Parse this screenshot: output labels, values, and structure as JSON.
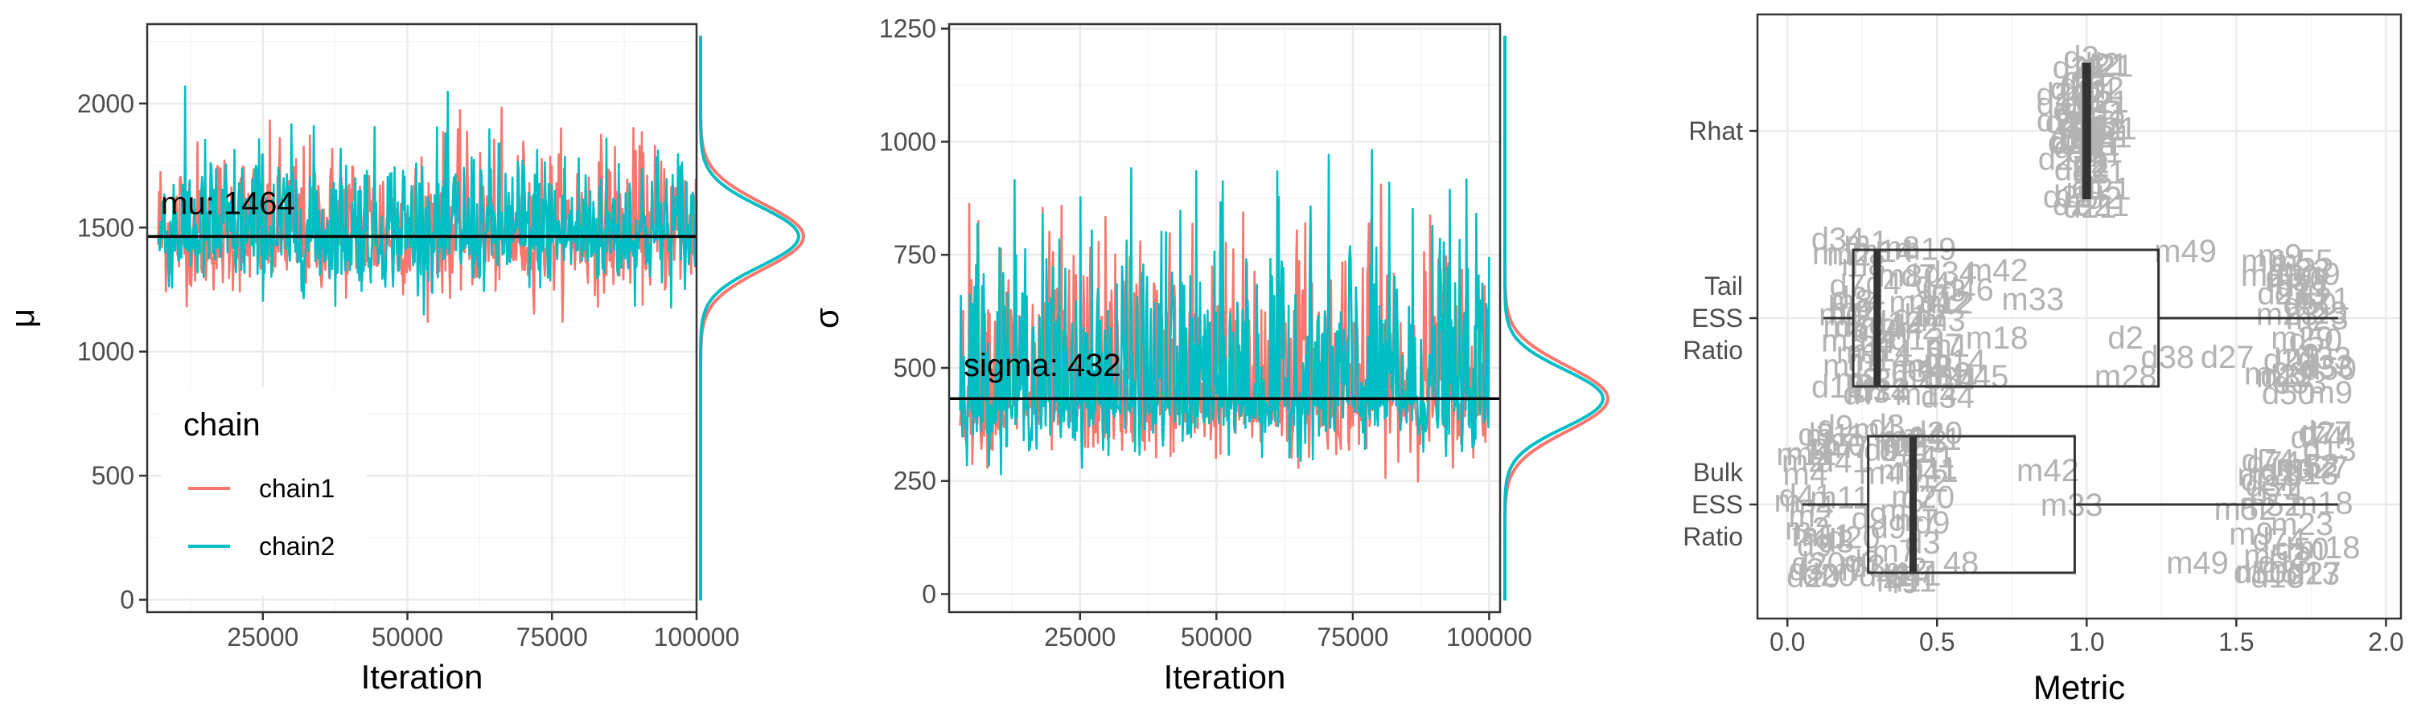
{
  "colors": {
    "chain1": "#F8766D",
    "chain2": "#00BFC4",
    "grid": "#EBEBEB",
    "point_label": "#B3B3B3"
  },
  "chart_data": [
    {
      "type": "line",
      "panel": "mu-trace",
      "xlabel": "Iteration",
      "ylabel": "μ",
      "xlim": [
        5000,
        100000
      ],
      "ylim": [
        -50,
        2320
      ],
      "x_ticks": [
        25000,
        50000,
        75000,
        100000
      ],
      "x_tick_labels": [
        "25000",
        "50000",
        "75000",
        "100000"
      ],
      "y_ticks": [
        0,
        500,
        1000,
        1500,
        2000
      ],
      "y_tick_labels": [
        "0",
        "500",
        "1000",
        "1500",
        "2000"
      ],
      "hline": 1464,
      "annotation": "mu: 1464",
      "legend": {
        "title": "chain",
        "position": "bottom-left",
        "entries": [
          "chain1",
          "chain2"
        ]
      },
      "series": [
        {
          "name": "chain1",
          "color": "#F8766D",
          "center": 1464,
          "low": 1120,
          "high": 2250
        },
        {
          "name": "chain2",
          "color": "#00BFC4",
          "center": 1464,
          "low": 1150,
          "high": 2240
        }
      ],
      "density_peak": 1464
    },
    {
      "type": "line",
      "panel": "sigma-trace",
      "xlabel": "Iteration",
      "ylabel": "σ",
      "xlim": [
        1000,
        102000
      ],
      "ylim": [
        -40,
        1260
      ],
      "x_ticks": [
        25000,
        50000,
        75000,
        100000
      ],
      "x_tick_labels": [
        "25000",
        "50000",
        "75000",
        "100000"
      ],
      "y_ticks": [
        0,
        250,
        500,
        750,
        1000,
        1250
      ],
      "y_tick_labels": [
        "0",
        "250",
        "500",
        "750",
        "1000",
        "1250"
      ],
      "hline": 432,
      "annotation": "sigma: 432",
      "series": [
        {
          "name": "chain1",
          "color": "#F8766D",
          "center": 432,
          "low": 245,
          "high": 1190
        },
        {
          "name": "chain2",
          "color": "#00BFC4",
          "center": 432,
          "low": 265,
          "high": 1210
        }
      ],
      "density_peak": 432
    },
    {
      "type": "boxplot",
      "panel": "diagnostics",
      "xlabel": "Metric",
      "xlim": [
        -0.1,
        2.05
      ],
      "x_ticks": [
        0.0,
        0.5,
        1.0,
        1.5,
        2.0
      ],
      "x_tick_labels": [
        "0.0",
        "0.5",
        "1.0",
        "1.5",
        "2.0"
      ],
      "categories": [
        "Rhat",
        "Tail ESS Ratio",
        "Bulk ESS Ratio"
      ],
      "category_labels": [
        [
          "Rhat"
        ],
        [
          "Tail",
          "ESS",
          "Ratio"
        ],
        [
          "Bulk",
          "ESS",
          "Ratio"
        ]
      ],
      "boxes": [
        {
          "category": "Rhat",
          "whisker_low": 1.0,
          "q1": 1.0,
          "median": 1.0,
          "q3": 1.0,
          "whisker_high": 1.0
        },
        {
          "category": "Tail ESS Ratio",
          "whisker_low": 0.12,
          "q1": 0.22,
          "median": 0.3,
          "q3": 1.24,
          "whisker_high": 1.84
        },
        {
          "category": "Bulk ESS Ratio",
          "whisker_low": 0.05,
          "q1": 0.27,
          "median": 0.42,
          "q3": 0.96,
          "whisker_high": 1.84
        }
      ],
      "point_labels": [
        {
          "category": "Tail ESS Ratio",
          "x": 1.33,
          "dy": -0.35,
          "text": "m49"
        },
        {
          "category": "Tail ESS Ratio",
          "x": 0.82,
          "dy": -0.1,
          "text": "m33"
        },
        {
          "category": "Tail ESS Ratio",
          "x": 0.45,
          "dy": 0.3,
          "text": "m25"
        },
        {
          "category": "Tail ESS Ratio",
          "x": 0.7,
          "dy": 0.1,
          "text": "m18"
        },
        {
          "category": "Tail ESS Ratio",
          "x": 1.13,
          "dy": 0.1,
          "text": "d2"
        },
        {
          "category": "Tail ESS Ratio",
          "x": 1.27,
          "dy": 0.2,
          "text": "d38"
        },
        {
          "category": "Tail ESS Ratio",
          "x": 1.47,
          "dy": 0.2,
          "text": "d27"
        },
        {
          "category": "Tail ESS Ratio",
          "x": 0.65,
          "dy": 0.3,
          "text": "d45"
        },
        {
          "category": "Tail ESS Ratio",
          "x": 1.13,
          "dy": 0.3,
          "text": "m28"
        },
        {
          "category": "Tail ESS Ratio",
          "x": 0.6,
          "dy": -0.15,
          "text": "d46"
        },
        {
          "category": "Tail ESS Ratio",
          "x": 0.45,
          "dy": 0.25,
          "text": "m42"
        },
        {
          "category": "Tail ESS Ratio",
          "x": 0.7,
          "dy": -0.25,
          "text": "m42"
        },
        {
          "category": "Tail ESS Ratio",
          "x": 1.77,
          "dy": 0.0,
          "text": "m23"
        },
        {
          "category": "Tail ESS Ratio",
          "x": 1.7,
          "dy": -0.2,
          "text": "m50"
        },
        {
          "category": "Tail ESS Ratio",
          "x": 1.72,
          "dy": 0.1,
          "text": "m29"
        },
        {
          "category": "Tail ESS Ratio",
          "x": 1.67,
          "dy": 0.3,
          "text": "m37"
        },
        {
          "category": "Tail ESS Ratio",
          "x": 1.67,
          "dy": 0.3,
          "text": "d22"
        },
        {
          "category": "Tail ESS Ratio",
          "x": 1.72,
          "dy": -0.3,
          "text": "m55"
        },
        {
          "category": "Tail ESS Ratio",
          "x": 1.59,
          "dy": -0.3,
          "text": "m6"
        },
        {
          "category": "Tail ESS Ratio",
          "x": 0.32,
          "dy": -0.35,
          "text": "m14"
        },
        {
          "category": "Tail ESS Ratio",
          "x": 0.46,
          "dy": -0.36,
          "text": "m19"
        },
        {
          "category": "Tail ESS Ratio",
          "x": 0.3,
          "dy": 0.38,
          "text": "m34"
        },
        {
          "category": "Tail ESS Ratio",
          "x": 0.2,
          "dy": -0.17,
          "text": "d7"
        },
        {
          "category": "Bulk ESS Ratio",
          "x": 0.43,
          "dy": -0.33,
          "text": "m43"
        },
        {
          "category": "Bulk ESS Ratio",
          "x": 0.87,
          "dy": -0.18,
          "text": "m42"
        },
        {
          "category": "Bulk ESS Ratio",
          "x": 0.95,
          "dy": 0.0,
          "text": "m33"
        },
        {
          "category": "Bulk ESS Ratio",
          "x": 1.37,
          "dy": 0.3,
          "text": "m49"
        },
        {
          "category": "Bulk ESS Ratio",
          "x": 1.58,
          "dy": 0.35,
          "text": "d50"
        },
        {
          "category": "Bulk ESS Ratio",
          "x": 1.67,
          "dy": -0.18,
          "text": "d13"
        },
        {
          "category": "Bulk ESS Ratio",
          "x": 1.62,
          "dy": -0.1,
          "text": "d31"
        },
        {
          "category": "Bulk ESS Ratio",
          "x": 1.77,
          "dy": -0.35,
          "text": "d74"
        },
        {
          "category": "Bulk ESS Ratio",
          "x": 1.72,
          "dy": 0.1,
          "text": "m23"
        },
        {
          "category": "Bulk ESS Ratio",
          "x": 1.72,
          "dy": 0.23,
          "text": "d50"
        },
        {
          "category": "Bulk ESS Ratio",
          "x": 1.55,
          "dy": 0.15,
          "text": "m9"
        },
        {
          "category": "Bulk ESS Ratio",
          "x": 1.53,
          "dy": 0.02,
          "text": "m52"
        },
        {
          "category": "Bulk ESS Ratio",
          "x": 0.09,
          "dy": 0.15,
          "text": "tau"
        },
        {
          "category": "Bulk ESS Ratio",
          "x": 0.22,
          "dy": 0.3,
          "text": "m"
        },
        {
          "category": "Bulk ESS Ratio",
          "x": 0.0,
          "dy": -0.02,
          "text": "m"
        },
        {
          "category": "Bulk ESS Ratio",
          "x": 0.58,
          "dy": 0.3,
          "text": "48"
        },
        {
          "category": "Bulk ESS Ratio",
          "x": 0.38,
          "dy": 0.4,
          "text": "49"
        },
        {
          "category": "Bulk ESS Ratio",
          "x": 0.2,
          "dy": -0.3,
          "text": "m7"
        },
        {
          "category": "Bulk ESS Ratio",
          "x": 0.38,
          "dy": -0.35,
          "text": "m4"
        }
      ],
      "rhat_labels": [
        "d21",
        "d1",
        "d2"
      ]
    }
  ]
}
